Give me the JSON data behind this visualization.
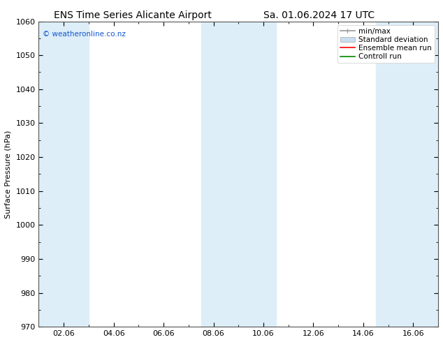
{
  "title_left": "ENS Time Series Alicante Airport",
  "title_right": "Sa. 01.06.2024 17 UTC",
  "ylabel": "Surface Pressure (hPa)",
  "xlabel": "",
  "ylim": [
    970,
    1060
  ],
  "yticks": [
    970,
    980,
    990,
    1000,
    1010,
    1020,
    1030,
    1040,
    1050,
    1060
  ],
  "xtick_labels": [
    "02.06",
    "04.06",
    "06.06",
    "08.06",
    "10.06",
    "12.06",
    "14.06",
    "16.06"
  ],
  "xtick_positions": [
    2,
    4,
    6,
    8,
    10,
    12,
    14,
    16
  ],
  "xlim": [
    1.0,
    17.0
  ],
  "watermark": "© weatheronline.co.nz",
  "watermark_color": "#1155cc",
  "bg_color": "#ffffff",
  "plot_bg_color": "#ffffff",
  "shaded_regions": [
    {
      "xstart": 1.0,
      "xend": 3.0,
      "color": "#ddeef8"
    },
    {
      "xstart": 7.5,
      "xend": 10.5,
      "color": "#ddeef8"
    },
    {
      "xstart": 14.5,
      "xend": 17.0,
      "color": "#ddeef8"
    }
  ],
  "legend_entries": [
    {
      "label": "min/max",
      "color": "#aaaaaa",
      "type": "errorbar"
    },
    {
      "label": "Standard deviation",
      "color": "#c8ddf0",
      "type": "fill"
    },
    {
      "label": "Ensemble mean run",
      "color": "#ff0000",
      "type": "line"
    },
    {
      "label": "Controll run",
      "color": "#008800",
      "type": "line"
    }
  ],
  "title_fontsize": 10,
  "tick_fontsize": 8,
  "ylabel_fontsize": 8,
  "legend_fontsize": 7.5
}
